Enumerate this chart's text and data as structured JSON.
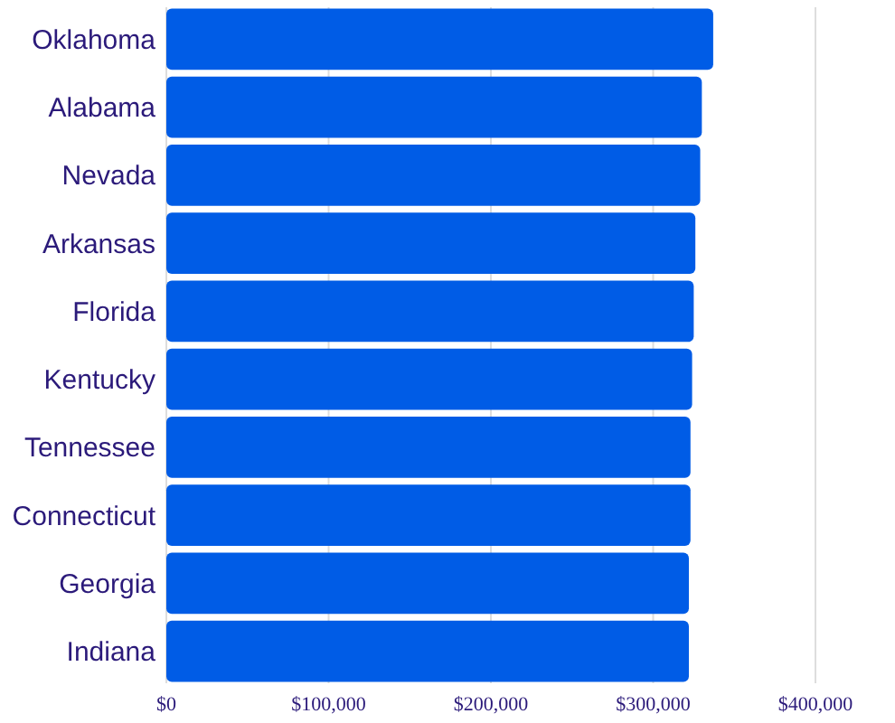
{
  "chart_data": {
    "type": "bar",
    "orientation": "horizontal",
    "categories": [
      "Oklahoma",
      "Alabama",
      "Nevada",
      "Arkansas",
      "Florida",
      "Kentucky",
      "Tennessee",
      "Connecticut",
      "Georgia",
      "Indiana"
    ],
    "values": [
      337000,
      330000,
      329000,
      326000,
      325000,
      324000,
      323000,
      323000,
      322000,
      322000
    ],
    "color": "#005ce6",
    "xlim": [
      0,
      400000
    ],
    "xticks": [
      {
        "value": 0,
        "label": "$0"
      },
      {
        "value": 100000,
        "label": "$100,000"
      },
      {
        "value": 200000,
        "label": "$200,000"
      },
      {
        "value": 300000,
        "label": "$300,000"
      },
      {
        "value": 400000,
        "label": "$400,000"
      }
    ],
    "grid": "x"
  }
}
